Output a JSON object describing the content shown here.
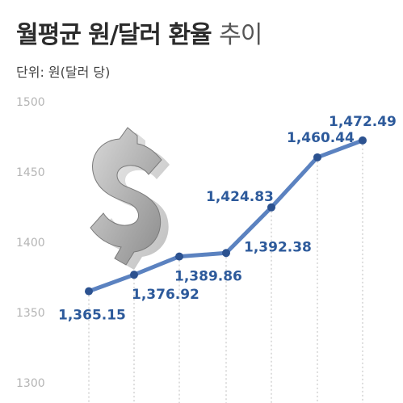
{
  "header": {
    "title_bold": "월평균 원/달러 환율",
    "title_light": "추이",
    "unit": "단위: 원(달러 당)"
  },
  "colors": {
    "line": "#5b82c0",
    "marker": "#2c5290",
    "label": "#2d5a9b",
    "grid": "#c8c8c8",
    "tick": "#b5b5b5"
  },
  "icon": "dollar-sign-icon",
  "chart_data": {
    "type": "line",
    "title": "월평균 원/달러 환율 추이",
    "ylabel": "단위: 원(달러 당)",
    "ylim": [
      1300,
      1500
    ],
    "yticks": [
      "1300",
      "1350",
      "1400",
      "1450",
      "1500"
    ],
    "grid": "vertical",
    "series": [
      {
        "values": [
          1365.15,
          1376.92,
          1389.86,
          1392.38,
          1424.83,
          1460.44,
          1472.49
        ],
        "labels": [
          "1,365.15",
          "1,376.92",
          "1,389.86",
          "1,392.38",
          "1,424.83",
          "1,460.44",
          "1,472.49"
        ]
      }
    ]
  }
}
